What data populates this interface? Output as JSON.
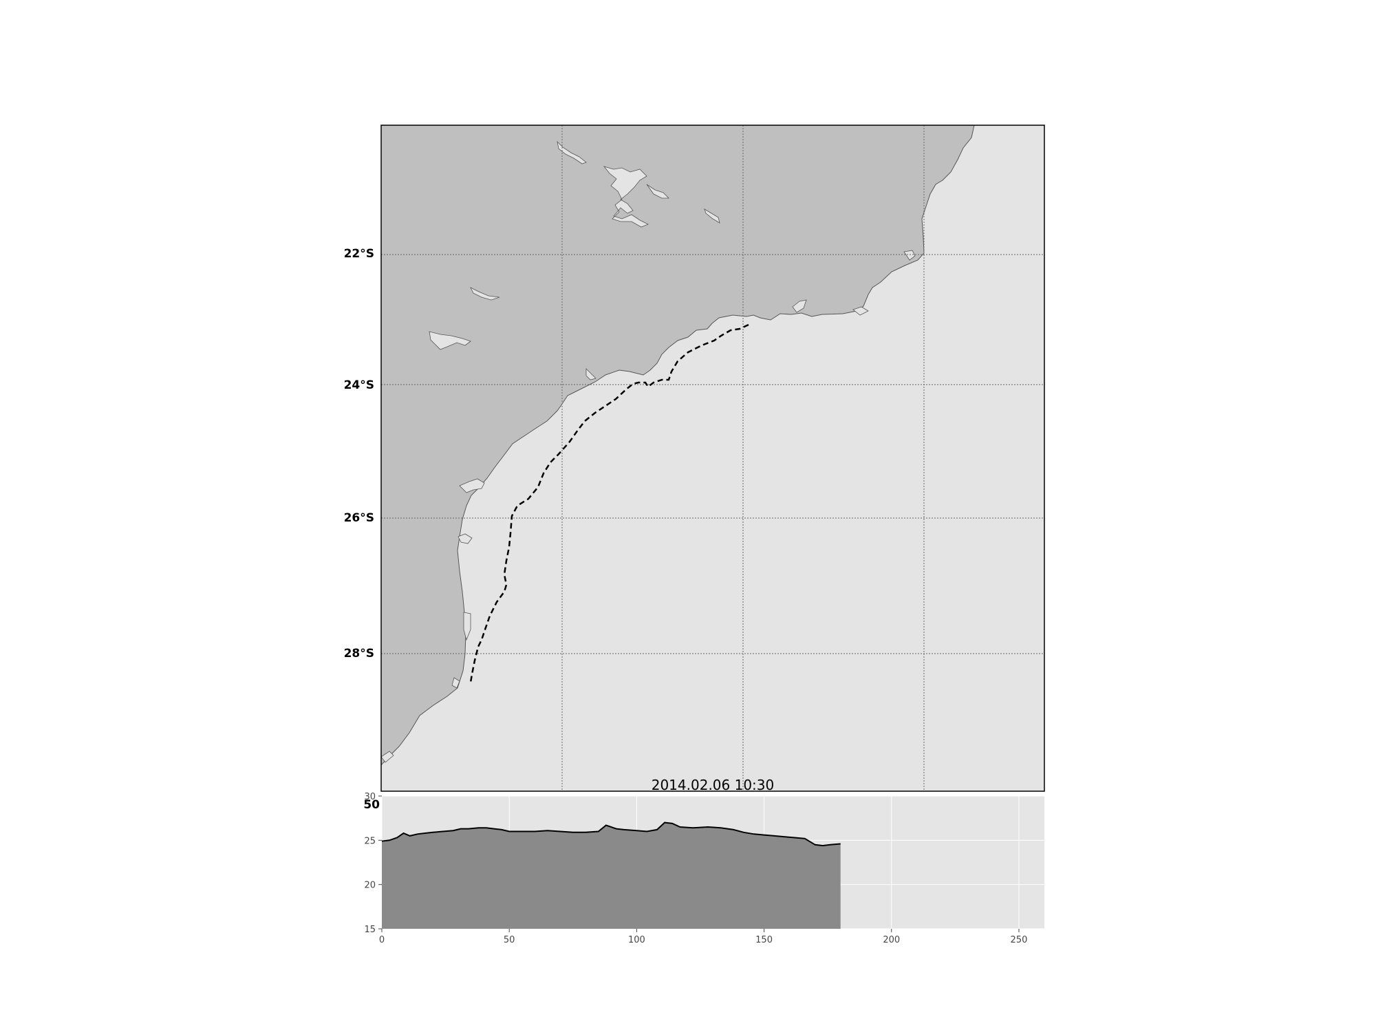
{
  "map": {
    "lat_labels": [
      "22°S",
      "24°S",
      "26°S",
      "28°S"
    ],
    "colors": {
      "land": "#bfbfbf",
      "ocean": "#e4e4e4",
      "coast": "#555555",
      "route": "#000000",
      "grid": "#666666"
    },
    "gridlines": "dotted",
    "route_style": "dashed"
  },
  "plot": {
    "title": "2014.02.06 10:30",
    "top_label": "50"
  },
  "chart_data": {
    "type": "area",
    "title": "2014.02.06 10:30",
    "xlabel": "",
    "ylabel": "",
    "xlim": [
      0,
      260
    ],
    "ylim": [
      15,
      30
    ],
    "xticks": [
      "0",
      "50",
      "100",
      "150",
      "200",
      "250"
    ],
    "yticks": [
      "15",
      "20",
      "25",
      "30"
    ],
    "grid": true,
    "fill_color": "#8a8a8a",
    "background": "#e5e5e5",
    "x": [
      0,
      3,
      6,
      8.5,
      11,
      14,
      17,
      20,
      24,
      28,
      31,
      34,
      38,
      41,
      44,
      47,
      50,
      55,
      60,
      65,
      70,
      75,
      80,
      85,
      88,
      92,
      95,
      100,
      104,
      108,
      111,
      114,
      117,
      122,
      128,
      133,
      138,
      142,
      146,
      150,
      154,
      158,
      162,
      166,
      170,
      173,
      176,
      180
    ],
    "y": [
      24.9,
      25.0,
      25.3,
      25.8,
      25.5,
      25.7,
      25.8,
      25.9,
      26.0,
      26.1,
      26.3,
      26.3,
      26.4,
      26.4,
      26.3,
      26.2,
      26.0,
      26.0,
      26.0,
      26.1,
      26.0,
      25.9,
      25.9,
      26.0,
      26.7,
      26.3,
      26.2,
      26.1,
      26.0,
      26.2,
      27.0,
      26.9,
      26.5,
      26.4,
      26.5,
      26.4,
      26.2,
      25.9,
      25.7,
      25.6,
      25.5,
      25.4,
      25.3,
      25.2,
      24.5,
      24.4,
      24.5,
      24.6
    ]
  }
}
